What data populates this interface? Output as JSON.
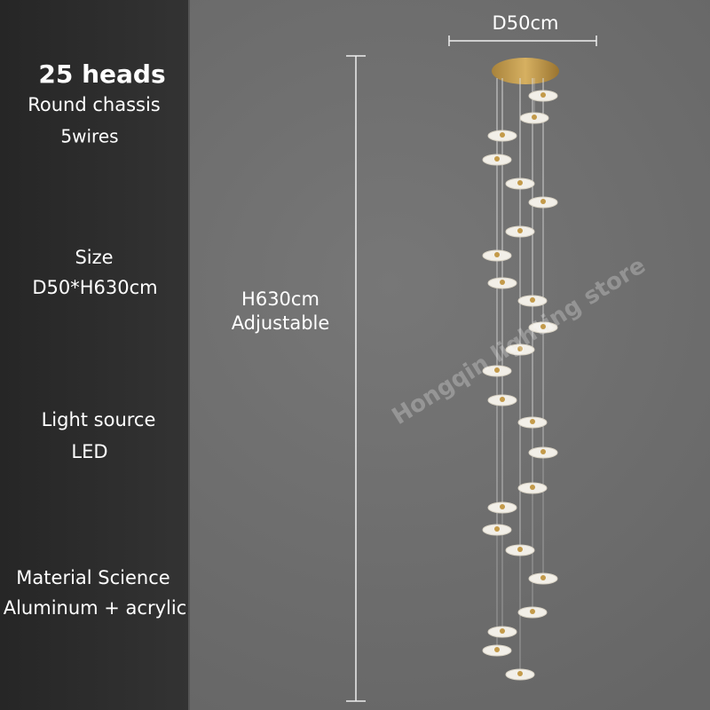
{
  "specs": {
    "heads": "25 heads",
    "chassis": "Round chassis",
    "wires": "5wires",
    "size_label": "Size",
    "size_value": "D50*H630cm",
    "light_label": "Light source",
    "light_value": "LED",
    "material_label": "Material Science",
    "material_value": "Aluminum + acrylic"
  },
  "dimensions": {
    "diameter": "D50cm",
    "height": "H630cm",
    "height_note": "Adjustable"
  },
  "watermark": "Hongqin lighting store"
}
